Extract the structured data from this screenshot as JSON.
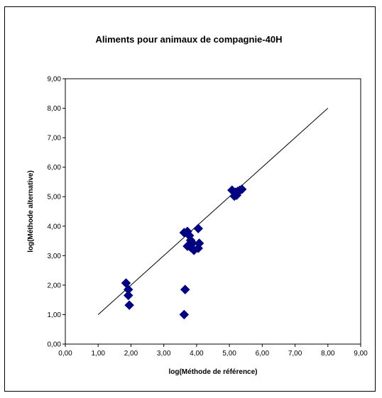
{
  "chart_data": {
    "type": "scatter",
    "title": "Aliments pour animaux de compagnie-40H",
    "xlabel": "log(Méthode de référence)",
    "ylabel": "log(Méthode alternative)",
    "xlim": [
      0,
      9
    ],
    "ylim": [
      0,
      9
    ],
    "x_ticks": [
      "0,00",
      "1,00",
      "2,00",
      "3,00",
      "4,00",
      "5,00",
      "6,00",
      "7,00",
      "8,00",
      "9,00"
    ],
    "y_ticks": [
      "0,00",
      "1,00",
      "2,00",
      "3,00",
      "4,00",
      "5,00",
      "6,00",
      "7,00",
      "8,00",
      "9,00"
    ],
    "grid": false,
    "legend": false,
    "marker": "diamond",
    "marker_color": "#000080",
    "reference_line": {
      "x": [
        1,
        8
      ],
      "y": [
        1,
        8
      ]
    },
    "points": [
      {
        "x": 1.85,
        "y": 2.07
      },
      {
        "x": 1.92,
        "y": 1.85
      },
      {
        "x": 1.92,
        "y": 1.65
      },
      {
        "x": 1.95,
        "y": 1.32
      },
      {
        "x": 3.62,
        "y": 3.78
      },
      {
        "x": 3.72,
        "y": 3.82
      },
      {
        "x": 3.78,
        "y": 3.68
      },
      {
        "x": 3.82,
        "y": 3.52
      },
      {
        "x": 3.88,
        "y": 3.42
      },
      {
        "x": 3.72,
        "y": 3.32
      },
      {
        "x": 3.82,
        "y": 3.28
      },
      {
        "x": 3.92,
        "y": 3.18
      },
      {
        "x": 4.05,
        "y": 3.25
      },
      {
        "x": 4.08,
        "y": 3.42
      },
      {
        "x": 4.05,
        "y": 3.92
      },
      {
        "x": 3.65,
        "y": 1.85
      },
      {
        "x": 3.62,
        "y": 1.0
      },
      {
        "x": 5.08,
        "y": 5.22
      },
      {
        "x": 5.15,
        "y": 5.02
      },
      {
        "x": 5.18,
        "y": 5.15
      },
      {
        "x": 5.22,
        "y": 5.05
      },
      {
        "x": 5.25,
        "y": 5.18
      },
      {
        "x": 5.32,
        "y": 5.22
      },
      {
        "x": 5.38,
        "y": 5.25
      }
    ]
  }
}
